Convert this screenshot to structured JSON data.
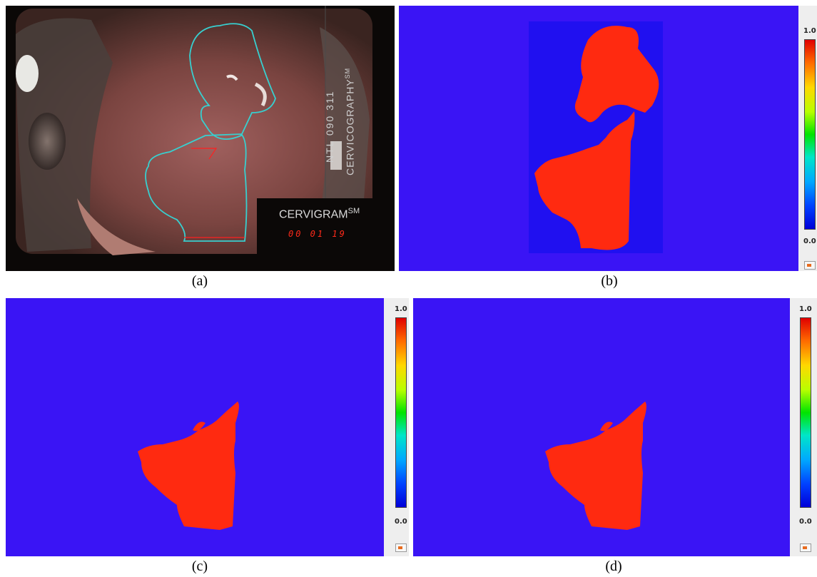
{
  "captions": {
    "a": "(a)",
    "b": "(b)",
    "c": "(c)",
    "d": "(d)"
  },
  "photo": {
    "vertical_text_1": "NTL 090 311",
    "vertical_text_2": "CERVICOGRAPHY",
    "vertical_text_2_sup": "SM",
    "brand": "CERVIGRAM",
    "brand_sup": "SM",
    "date": "00 01 19",
    "contour_color": "#37d0d0",
    "marker_color": "#ff2020"
  },
  "maps": {
    "background_color": "#3a14f5",
    "region_color": "#ff2a10",
    "crop_background_color": "#2010f0",
    "colorbar_max": "1.0",
    "colorbar_min": "0.0"
  }
}
